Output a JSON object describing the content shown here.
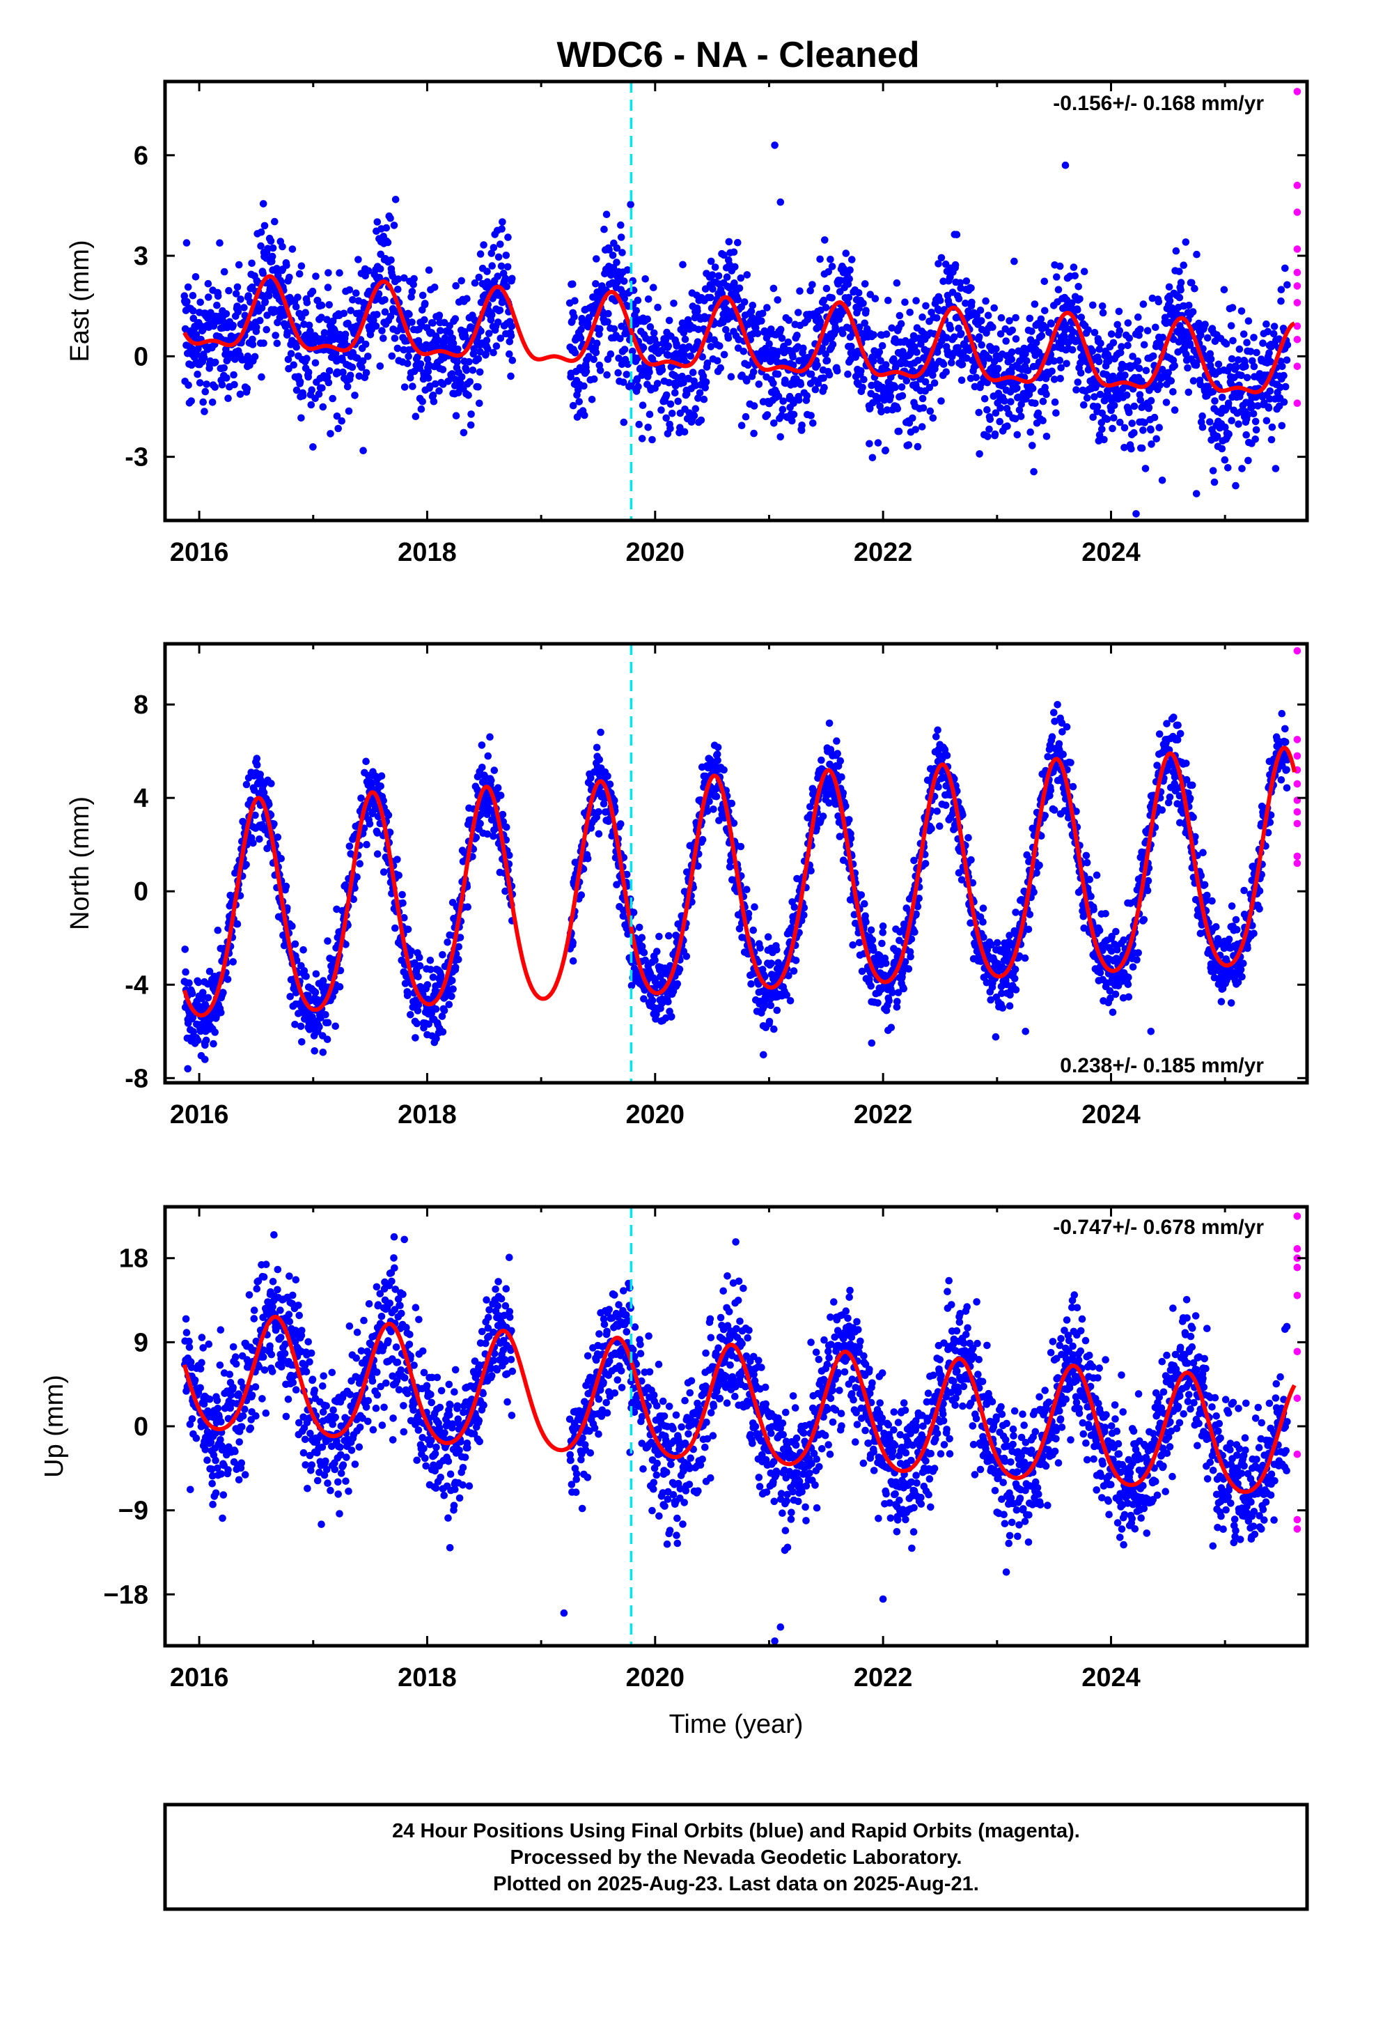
{
  "title": "WDC6  - NA - Cleaned",
  "x_label": "Time (year)",
  "footer": {
    "line1": "24 Hour Positions Using Final Orbits (blue) and Rapid Orbits (magenta).",
    "line2": "Processed by the Nevada Geodetic Laboratory.",
    "line3": "Plotted on 2025-Aug-23. Last data on 2025-Aug-21."
  },
  "colors": {
    "final_orbits": "#0000ff",
    "rapid_orbits": "#ff00ff",
    "model_fit": "#ff0000",
    "event_line": "#00e5ee",
    "frame": "#000000"
  },
  "chart_data": [
    {
      "type": "scatter",
      "component": "east",
      "ylabel": "East (mm)",
      "rate_text": "-0.156+/- 0.168 mm/yr",
      "rate_position": "top-right",
      "xlim": [
        2015.7,
        2025.72
      ],
      "ylim": [
        -4.9,
        8.2
      ],
      "xticks": [
        2016,
        2018,
        2020,
        2022,
        2024
      ],
      "yticks": [
        -3,
        0,
        3,
        6
      ],
      "ytick_labels": [
        "-3",
        "0",
        "3",
        "6"
      ],
      "event_line_x": 2019.79,
      "data_start": 2015.87,
      "final_end": 2025.55,
      "rapid_start": 2025.55,
      "rapid_end": 2025.64,
      "gaps": [
        [
          2018.75,
          2019.25
        ]
      ],
      "fit": {
        "mean": 0.35,
        "trend_mm_per_yr": -0.156,
        "annual_amplitude": 1.0,
        "annual_phase_peak": 0.62,
        "semiannual_amplitude": 0.4,
        "semiannual_phase_peak": 0.62,
        "noise_sigma": 1.0
      },
      "rapid_values": [
        7.9,
        5.1,
        4.3,
        3.2,
        2.5,
        2.1,
        1.6,
        0.9,
        0.5,
        -0.3,
        -1.4
      ],
      "outliers": [
        [
          2021.05,
          6.3
        ],
        [
          2021.1,
          4.6
        ],
        [
          2023.6,
          5.7
        ],
        [
          2024.22,
          -4.7
        ],
        [
          2024.45,
          -3.7
        ],
        [
          2024.75,
          -4.1
        ]
      ]
    },
    {
      "type": "scatter",
      "component": "north",
      "ylabel": "North (mm)",
      "rate_text": "0.238+/- 0.185 mm/yr",
      "rate_position": "bottom-right",
      "xlim": [
        2015.7,
        2025.72
      ],
      "ylim": [
        -8.2,
        10.6
      ],
      "xticks": [
        2016,
        2018,
        2020,
        2022,
        2024
      ],
      "yticks": [
        -8,
        -4,
        0,
        4,
        8
      ],
      "ytick_labels": [
        "-8",
        "-4",
        "0",
        "4",
        "8"
      ],
      "event_line_x": 2019.79,
      "data_start": 2015.87,
      "final_end": 2025.55,
      "rapid_start": 2025.55,
      "rapid_end": 2025.64,
      "gaps": [
        [
          2018.75,
          2019.25
        ]
      ],
      "fit": {
        "mean": -0.2,
        "trend_mm_per_yr": 0.238,
        "annual_amplitude": 4.6,
        "annual_phase_peak": 0.52,
        "semiannual_amplitude": 0.6,
        "semiannual_phase_peak": 0.02,
        "noise_sigma": 0.85
      },
      "rapid_values": [
        10.3,
        6.5,
        5.8,
        5.2,
        4.6,
        3.9,
        3.4,
        2.9,
        1.5,
        1.2
      ],
      "outliers": [
        [
          2015.9,
          -7.6
        ],
        [
          2016.05,
          -7.2
        ],
        [
          2020.95,
          -7.0
        ],
        [
          2021.9,
          -6.5
        ],
        [
          2023.25,
          -6.0
        ],
        [
          2024.35,
          -6.0
        ]
      ]
    },
    {
      "type": "scatter",
      "component": "up",
      "ylabel": "Up (mm)",
      "rate_text": "-0.747+/- 0.678 mm/yr",
      "rate_position": "top-right",
      "xlim": [
        2015.7,
        2025.72
      ],
      "ylim": [
        -23.5,
        23.5
      ],
      "xticks": [
        2016,
        2018,
        2020,
        2022,
        2024
      ],
      "yticks": [
        -18,
        -9,
        0,
        9,
        18
      ],
      "ytick_labels": [
        "−18",
        "−9",
        "0",
        "9",
        "18"
      ],
      "event_line_x": 2019.79,
      "data_start": 2015.87,
      "final_end": 2025.55,
      "rapid_start": 2025.55,
      "rapid_end": 2025.64,
      "gaps": [
        [
          2018.75,
          2019.25
        ]
      ],
      "fit": {
        "mean": 1.7,
        "trend_mm_per_yr": -0.747,
        "annual_amplitude": 6.2,
        "annual_phase_peak": 0.67,
        "semiannual_amplitude": 0.8,
        "semiannual_phase_peak": 0.67,
        "noise_sigma": 3.5
      },
      "rapid_values": [
        22.5,
        19.0,
        18.0,
        17.0,
        14.0,
        8.0,
        3.0,
        -3.0,
        -10.0,
        -11.0
      ],
      "outliers": [
        [
          2019.2,
          -20.0
        ],
        [
          2021.1,
          -21.5
        ],
        [
          2021.05,
          -23.0
        ],
        [
          2017.8,
          20.0
        ],
        [
          2018.2,
          -13.0
        ],
        [
          2022.0,
          -18.5
        ]
      ]
    }
  ]
}
